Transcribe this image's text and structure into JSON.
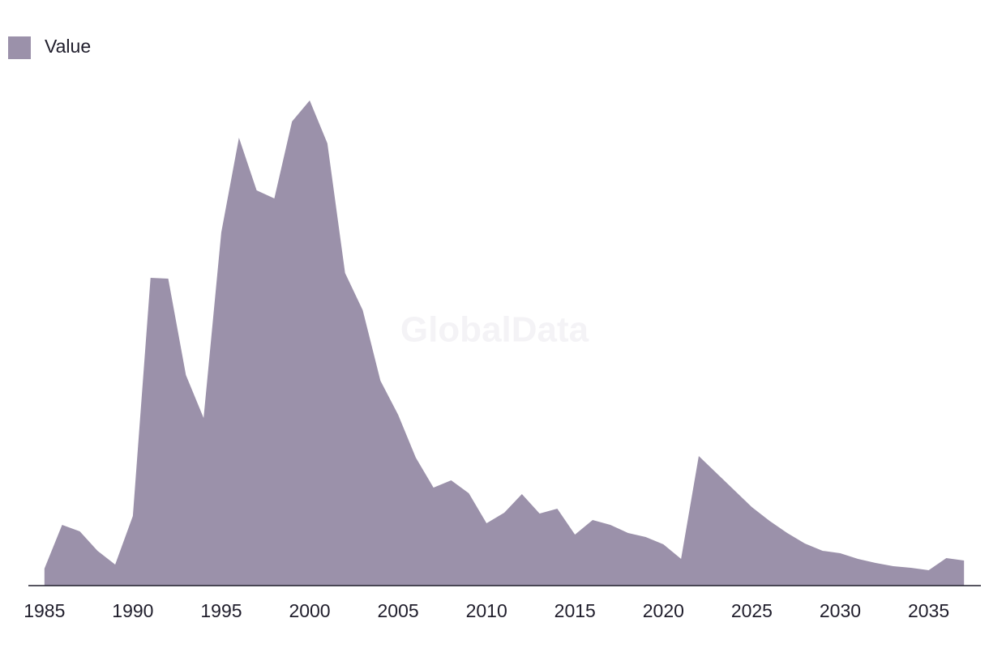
{
  "chart_data": {
    "type": "area",
    "watermark": "GlobalData",
    "x": [
      1985,
      1986,
      1987,
      1988,
      1989,
      1990,
      1991,
      1992,
      1993,
      1994,
      1995,
      1996,
      1997,
      1998,
      1999,
      2000,
      2001,
      2002,
      2003,
      2004,
      2005,
      2006,
      2007,
      2008,
      2009,
      2010,
      2011,
      2012,
      2013,
      2014,
      2015,
      2016,
      2017,
      2018,
      2019,
      2020,
      2021,
      2022,
      2023,
      2024,
      2025,
      2026,
      2027,
      2028,
      2029,
      2030,
      2031,
      2032,
      2033,
      2034,
      2035,
      2036,
      2037
    ],
    "series": [
      {
        "name": "Value",
        "color": "#9b91aa",
        "values": [
          21,
          75,
          67,
          43,
          26,
          86,
          380,
          379,
          260,
          207,
          436,
          553,
          488,
          478,
          573,
          599,
          546,
          386,
          340,
          253,
          211,
          158,
          121,
          130,
          114,
          77,
          90,
          113,
          89,
          95,
          63,
          81,
          75,
          65,
          60,
          51,
          33,
          160,
          139,
          118,
          97,
          80,
          65,
          52,
          43,
          40,
          33,
          28,
          24,
          22,
          19,
          34,
          31
        ]
      }
    ],
    "xlim": [
      1984,
      2038
    ],
    "xticks": [
      1985,
      1990,
      1995,
      2000,
      2005,
      2010,
      2015,
      2020,
      2025,
      2030,
      2035
    ],
    "ylim": [
      0,
      620
    ],
    "legend": "top-left"
  }
}
